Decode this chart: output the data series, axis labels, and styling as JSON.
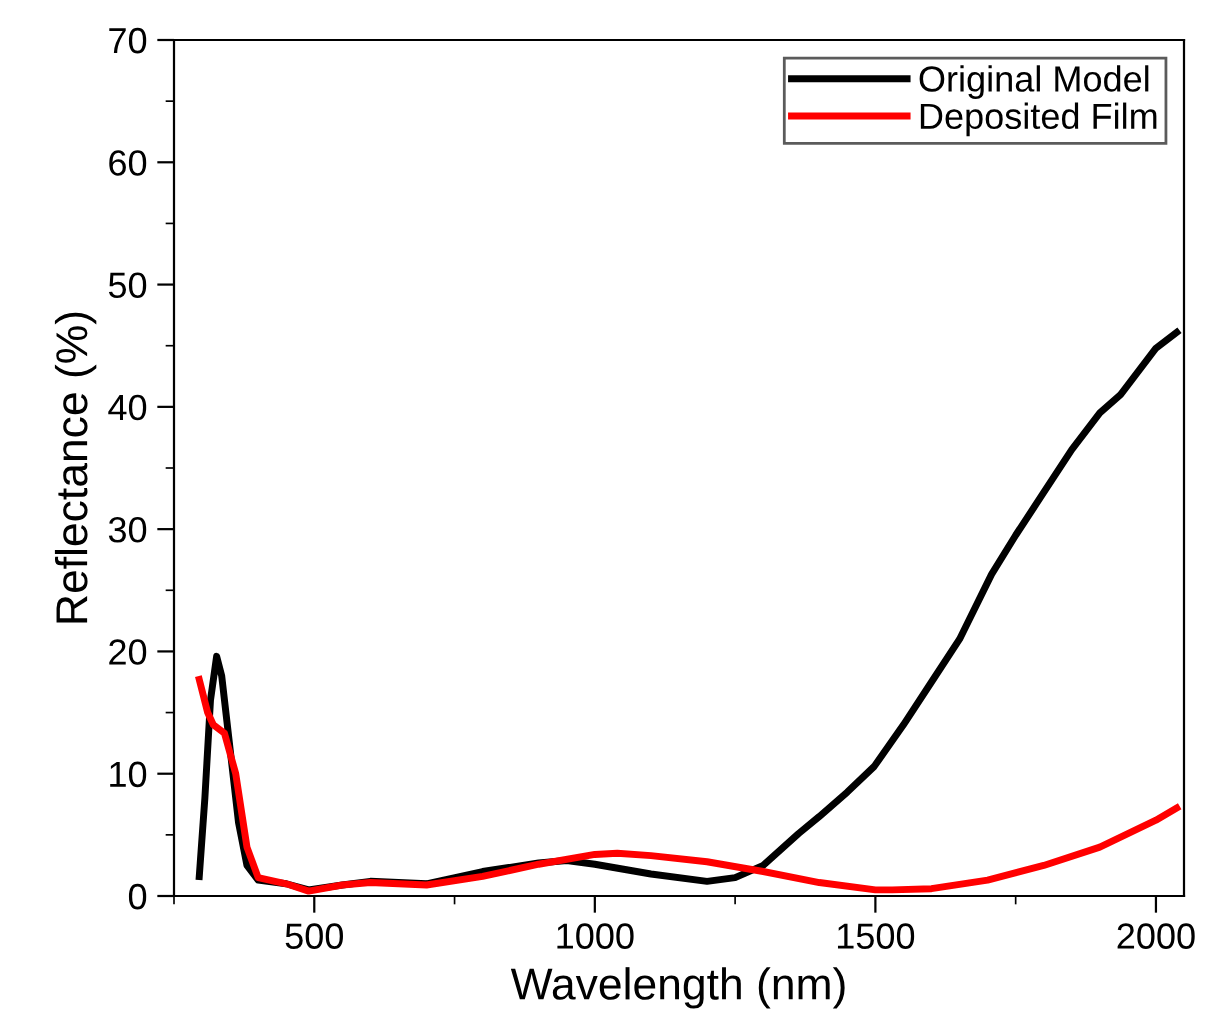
{
  "chart_data": {
    "type": "line",
    "xlabel": "Wavelength (nm)",
    "ylabel": "Reflectance (%)",
    "xlim": [
      250,
      2050
    ],
    "xticks": [
      500,
      1000,
      1500,
      2000
    ],
    "ylim": [
      0,
      70
    ],
    "yticks": [
      0,
      10,
      20,
      30,
      40,
      50,
      60,
      70
    ],
    "legend": "top right",
    "grid": false,
    "line_style": "solid",
    "marker": "none",
    "series": [
      {
        "name": "Original Model",
        "color": "#000000",
        "x": [
          295,
          305,
          315,
          326,
          335,
          350,
          365,
          380,
          400,
          450,
          490,
          550,
          600,
          700,
          800,
          900,
          950,
          1000,
          1100,
          1200,
          1250,
          1300,
          1363,
          1400,
          1450,
          1498,
          1550,
          1600,
          1650,
          1707,
          1750,
          1800,
          1850,
          1900,
          1937,
          2000,
          2037
        ],
        "values": [
          1.6,
          8,
          16,
          19.6,
          18,
          12,
          6,
          2.5,
          1.3,
          1,
          0.5,
          0.9,
          1.2,
          1.0,
          2,
          2.7,
          2.9,
          2.6,
          1.8,
          1.2,
          1.5,
          2.5,
          5.1,
          6.5,
          8.5,
          10.6,
          14,
          17.5,
          21,
          26.3,
          29.5,
          33,
          36.5,
          39.5,
          41,
          44.8,
          46.1
        ]
      },
      {
        "name": "Deposited Film",
        "color": "#ff0000",
        "x": [
          295,
          310,
          320,
          340,
          360,
          380,
          400,
          450,
          490,
          550,
          600,
          700,
          800,
          900,
          1000,
          1040,
          1100,
          1200,
          1300,
          1400,
          1500,
          1530,
          1600,
          1700,
          1800,
          1900,
          2000,
          2037
        ],
        "values": [
          17.7,
          15,
          14,
          13.3,
          10,
          4,
          1.5,
          1,
          0.4,
          0.9,
          1.1,
          0.9,
          1.6,
          2.6,
          3.4,
          3.5,
          3.3,
          2.8,
          2,
          1.1,
          0.5,
          0.5,
          0.6,
          1.3,
          2.5,
          4,
          6.2,
          7.2
        ]
      }
    ]
  }
}
